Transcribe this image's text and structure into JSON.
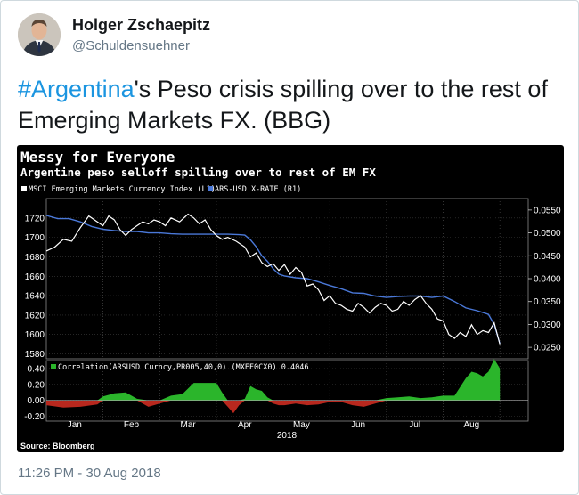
{
  "tweet": {
    "author_name": "Holger Zschaepitz",
    "author_handle": "@Schuldensuehner",
    "hashtag": "#Argentina",
    "text_rest": "'s Peso crisis spilling over to the rest of Emerging Markets FX. (BBG)",
    "timestamp": "11:26 PM - 30 Aug 2018"
  },
  "chart_data": {
    "type": "line",
    "title": "Messy for Everyone",
    "subtitle": "Argentine peso selloff spilling over to rest of EM FX",
    "source": "Source: Bloomberg",
    "xlabel": "2018",
    "x_months": [
      "Jan",
      "Feb",
      "Mar",
      "Apr",
      "May",
      "Jun",
      "Jul",
      "Aug"
    ],
    "xlim": [
      0,
      8.5
    ],
    "main_panel": {
      "ylim_left": [
        1575,
        1740
      ],
      "yticks_left": [
        "1720",
        "1700",
        "1680",
        "1660",
        "1640",
        "1620",
        "1600",
        "1580"
      ],
      "ylim_right": [
        0.0225,
        0.0575
      ],
      "yticks_right": [
        "0.0550",
        "0.0500",
        "0.0450",
        "0.0400",
        "0.0350",
        "0.0300",
        "0.0250"
      ],
      "series": [
        {
          "name": "MSCI Emerging Markets Currency Index (L1)",
          "axis": "left",
          "color": "#ffffff",
          "x": [
            0,
            0.15,
            0.3,
            0.45,
            0.6,
            0.75,
            0.9,
            1.0,
            1.1,
            1.2,
            1.3,
            1.4,
            1.5,
            1.6,
            1.7,
            1.8,
            1.9,
            2.0,
            2.1,
            2.2,
            2.35,
            2.5,
            2.6,
            2.7,
            2.8,
            2.9,
            3.0,
            3.1,
            3.2,
            3.35,
            3.5,
            3.6,
            3.7,
            3.8,
            3.9,
            4.0,
            4.1,
            4.2,
            4.3,
            4.4,
            4.5,
            4.6,
            4.7,
            4.8,
            4.9,
            5.0,
            5.1,
            5.2,
            5.3,
            5.4,
            5.5,
            5.6,
            5.7,
            5.8,
            5.9,
            6.0,
            6.1,
            6.2,
            6.3,
            6.4,
            6.5,
            6.6,
            6.7,
            6.8,
            6.9,
            7.0,
            7.1,
            7.2,
            7.3,
            7.4,
            7.5,
            7.6,
            7.7,
            7.8,
            7.9,
            8.0
          ],
          "values": [
            1686,
            1690,
            1698,
            1696,
            1710,
            1722,
            1716,
            1712,
            1722,
            1718,
            1708,
            1702,
            1708,
            1712,
            1716,
            1714,
            1718,
            1716,
            1712,
            1720,
            1716,
            1724,
            1720,
            1714,
            1718,
            1708,
            1702,
            1698,
            1700,
            1696,
            1690,
            1680,
            1684,
            1674,
            1670,
            1673,
            1666,
            1672,
            1662,
            1669,
            1664,
            1650,
            1652,
            1646,
            1635,
            1640,
            1632,
            1630,
            1626,
            1624,
            1632,
            1628,
            1622,
            1628,
            1632,
            1630,
            1624,
            1626,
            1634,
            1630,
            1636,
            1640,
            1632,
            1626,
            1616,
            1614,
            1600,
            1596,
            1602,
            1598,
            1610,
            1600,
            1604,
            1602,
            1612,
            1590
          ]
        },
        {
          "name": "ARS-USD X-RATE (R1)",
          "axis": "right",
          "color": "#4a78d8",
          "x": [
            0,
            0.2,
            0.4,
            0.6,
            0.8,
            1.0,
            1.2,
            1.4,
            1.6,
            1.8,
            2.0,
            2.2,
            2.4,
            2.6,
            2.8,
            3.0,
            3.2,
            3.4,
            3.5,
            3.6,
            3.7,
            3.8,
            3.9,
            4.0,
            4.1,
            4.2,
            4.4,
            4.6,
            4.8,
            5.0,
            5.2,
            5.4,
            5.6,
            5.8,
            6.0,
            6.2,
            6.4,
            6.6,
            6.8,
            7.0,
            7.2,
            7.4,
            7.6,
            7.8,
            7.9,
            8.0
          ],
          "values": [
            0.0538,
            0.0531,
            0.0531,
            0.0524,
            0.0514,
            0.0508,
            0.0505,
            0.0503,
            0.0503,
            0.05,
            0.05,
            0.0498,
            0.0497,
            0.0497,
            0.0497,
            0.0497,
            0.0497,
            0.0496,
            0.0495,
            0.0485,
            0.047,
            0.045,
            0.0438,
            0.0422,
            0.041,
            0.0406,
            0.0402,
            0.04,
            0.0393,
            0.0385,
            0.0378,
            0.0369,
            0.0368,
            0.0362,
            0.0359,
            0.0361,
            0.0362,
            0.0362,
            0.0359,
            0.0362,
            0.035,
            0.0336,
            0.033,
            0.0322,
            0.03,
            0.0258
          ]
        }
      ]
    },
    "correlation_panel": {
      "label": "Correlation(ARSUSD Curncy,PR005,40,0) (MXEF0CX0) 0.4046",
      "ylim": [
        -0.26,
        0.5
      ],
      "yticks": [
        "0.40",
        "0.20",
        "0.00",
        "-0.20"
      ],
      "positive_color": "#2bb52b",
      "negative_color": "#b8281e",
      "x": [
        0,
        0.3,
        0.6,
        0.9,
        1.0,
        1.2,
        1.4,
        1.6,
        1.8,
        2.0,
        2.2,
        2.4,
        2.6,
        2.8,
        3.0,
        3.1,
        3.2,
        3.3,
        3.4,
        3.5,
        3.6,
        3.7,
        3.8,
        3.9,
        4.0,
        4.1,
        4.2,
        4.4,
        4.6,
        4.8,
        5.0,
        5.2,
        5.4,
        5.6,
        5.8,
        6.0,
        6.2,
        6.4,
        6.6,
        6.8,
        7.0,
        7.2,
        7.4,
        7.5,
        7.6,
        7.7,
        7.8,
        7.9,
        8.0
      ],
      "values": [
        -0.06,
        -0.09,
        -0.08,
        -0.05,
        0.05,
        0.09,
        0.1,
        0.02,
        -0.08,
        -0.04,
        0.06,
        0.08,
        0.22,
        0.22,
        0.22,
        0.1,
        -0.08,
        -0.16,
        -0.06,
        0.02,
        0.18,
        0.14,
        0.12,
        0.04,
        -0.04,
        -0.06,
        -0.06,
        -0.04,
        -0.06,
        -0.05,
        -0.02,
        -0.02,
        -0.06,
        -0.08,
        -0.04,
        0.03,
        0.04,
        0.05,
        0.03,
        0.04,
        0.06,
        0.06,
        0.28,
        0.36,
        0.34,
        0.3,
        0.36,
        0.52,
        0.4
      ]
    }
  }
}
